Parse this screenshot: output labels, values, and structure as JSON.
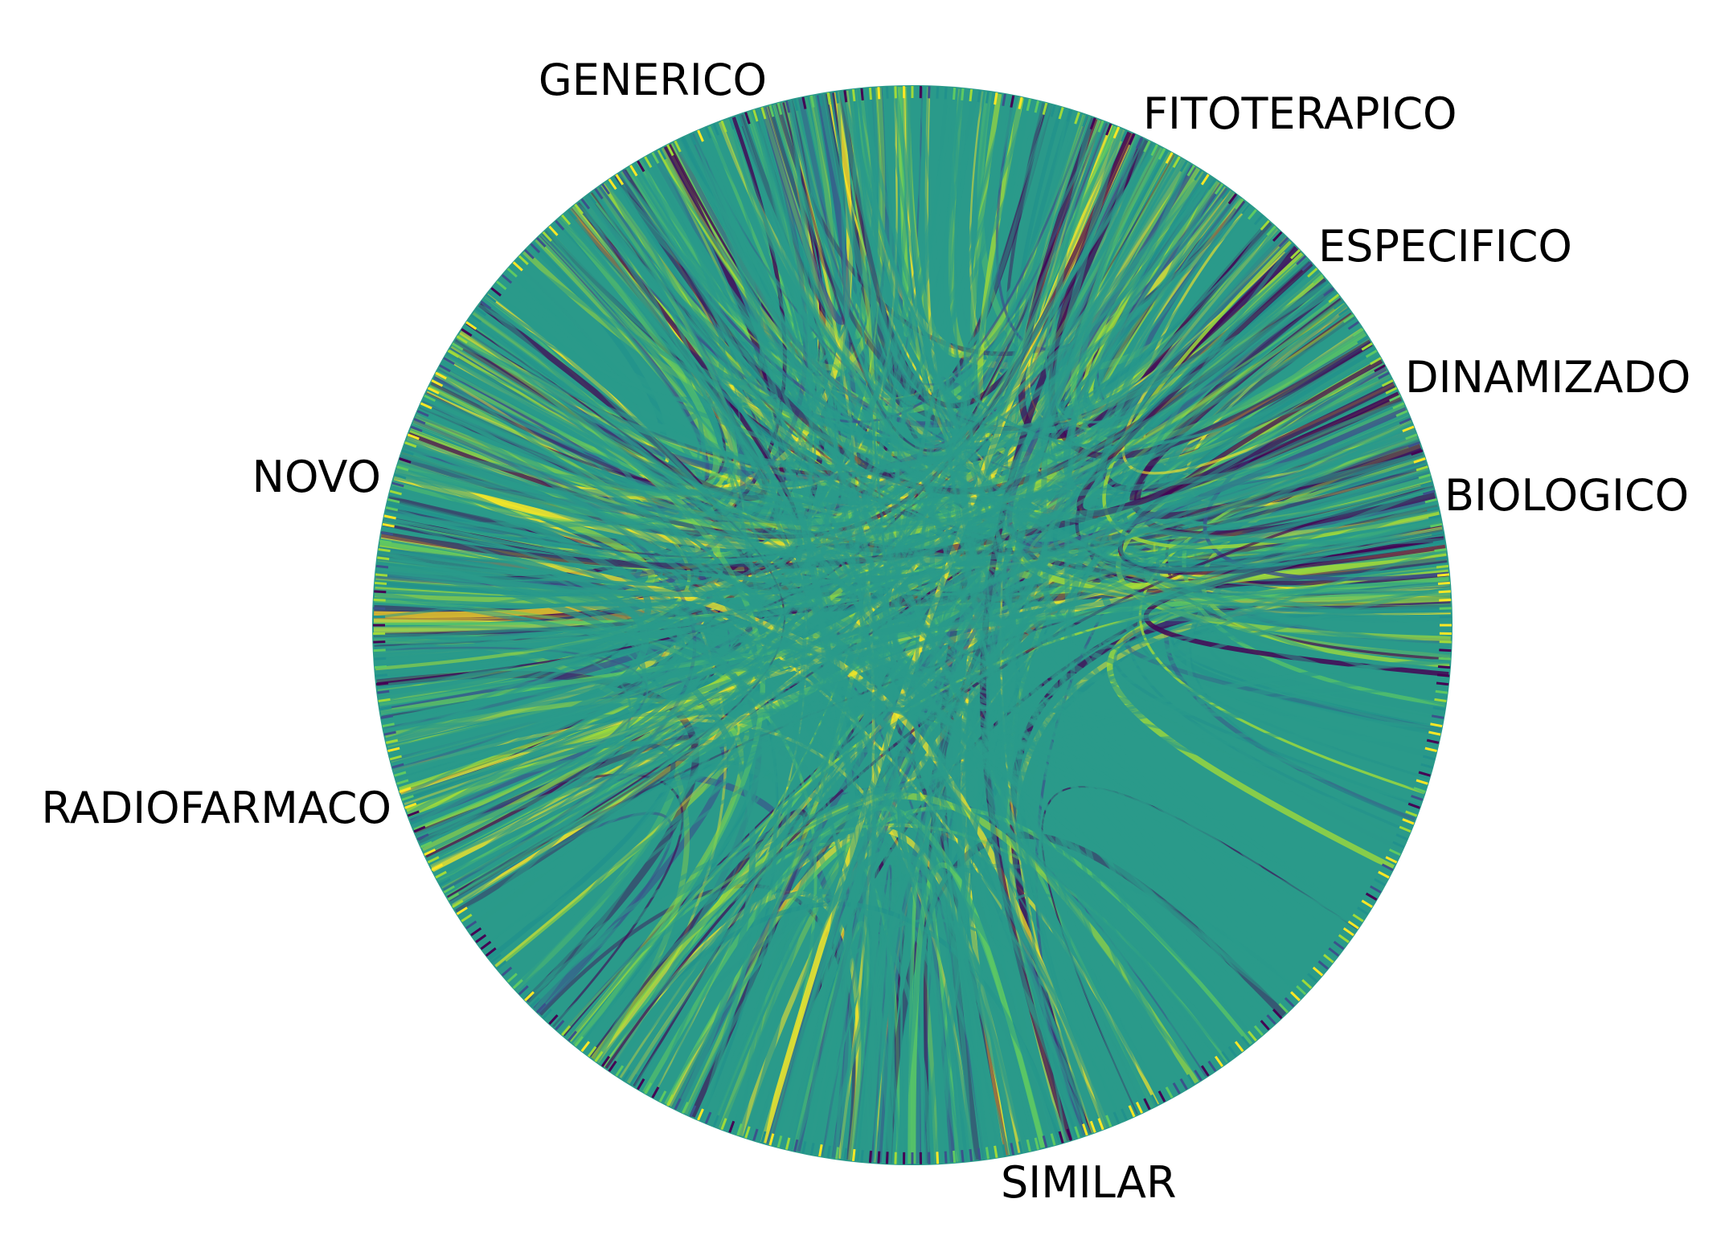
{
  "chart_data": {
    "type": "chord",
    "categories": [
      "GENERICO",
      "FITOTERAPICO",
      "ESPECIFICO",
      "DINAMIZADO",
      "BIOLOGICO",
      "SIMILAR",
      "RADIOFARMACO",
      "NOVO"
    ],
    "colormap": "viridis",
    "palette": [
      "#440154",
      "#3b528b",
      "#21918c",
      "#5ec962",
      "#a0da39",
      "#fde725"
    ],
    "dominant_color": "#2a9a8a",
    "grid": false,
    "legend": "none"
  }
}
